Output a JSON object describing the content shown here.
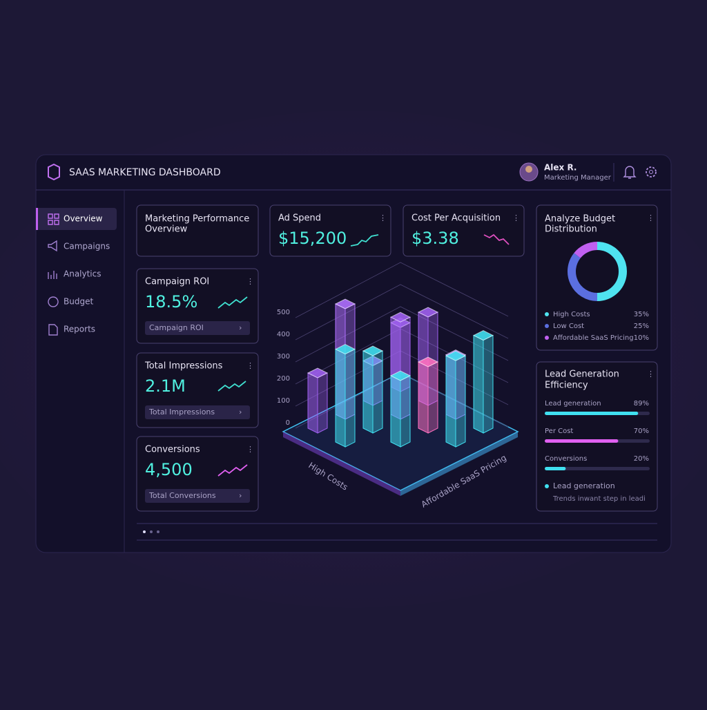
{
  "header": {
    "title": "SAAS MARKETING DASHBOARD",
    "user_name": "Alex R.",
    "user_role": "Marketing Manager"
  },
  "nav": [
    "Overview",
    "Campaigns",
    "Analytics",
    "Budget",
    "Reports"
  ],
  "overview": {
    "title": [
      "Marketing Performance",
      "Overview"
    ]
  },
  "kpis": [
    {
      "title": "Ad Spend",
      "value": "$15,200"
    },
    {
      "title": "Cost Per Acquisition",
      "value": "$3.38"
    },
    {
      "title": "Campaign ROI",
      "value": "18.5%",
      "link": "Campaign ROI"
    },
    {
      "title": "Total Impressions",
      "value": "2.1M",
      "link": "Total Impressions"
    },
    {
      "title": "Conversions",
      "value": "4,500",
      "link": "Total Conversions"
    }
  ],
  "chart": {
    "ylim": [
      0,
      500
    ],
    "yticks": [
      0,
      100,
      200,
      300,
      400,
      500
    ],
    "values": [
      290,
      400,
      180,
      270,
      440,
      500,
      420,
      300,
      350,
      250,
      390,
      300,
      420
    ],
    "colors": [
      "#a060f0",
      "#a060f0",
      "#a060f0",
      "#a060f0",
      "#a060f0",
      "#b070ff",
      "#40e0f0",
      "#ff70c0",
      "#40e0f0",
      "#a060f0",
      "#40e0f0",
      "#40e0f0",
      "#40e0f0"
    ],
    "x_label": "High Costs",
    "z_label": "Affordable SaaS Pricing"
  },
  "budget": {
    "title": [
      "Analyze Budget",
      "Distribution"
    ],
    "categories": [
      "High Costs",
      "Low Cost",
      "Affordable SaaS Pricing"
    ],
    "values": [
      35,
      25,
      10
    ],
    "value_labels": [
      "35%",
      "25%",
      "10%"
    ],
    "colors": [
      "#4fe3f0",
      "#5b6fe0",
      "#c060f0"
    ]
  },
  "lead": {
    "title": [
      "Lead Generation",
      "Efficiency"
    ],
    "categories": [
      "Lead generation",
      "Per Cost",
      "Conversions"
    ],
    "values": [
      89,
      70,
      20
    ],
    "value_labels": [
      "89%",
      "70%",
      "20%"
    ],
    "colors": [
      "#40e0f0",
      "#e060f0",
      "#40e0f0"
    ],
    "legend": "Lead generation",
    "note": "Trends inwant step in leadi"
  }
}
